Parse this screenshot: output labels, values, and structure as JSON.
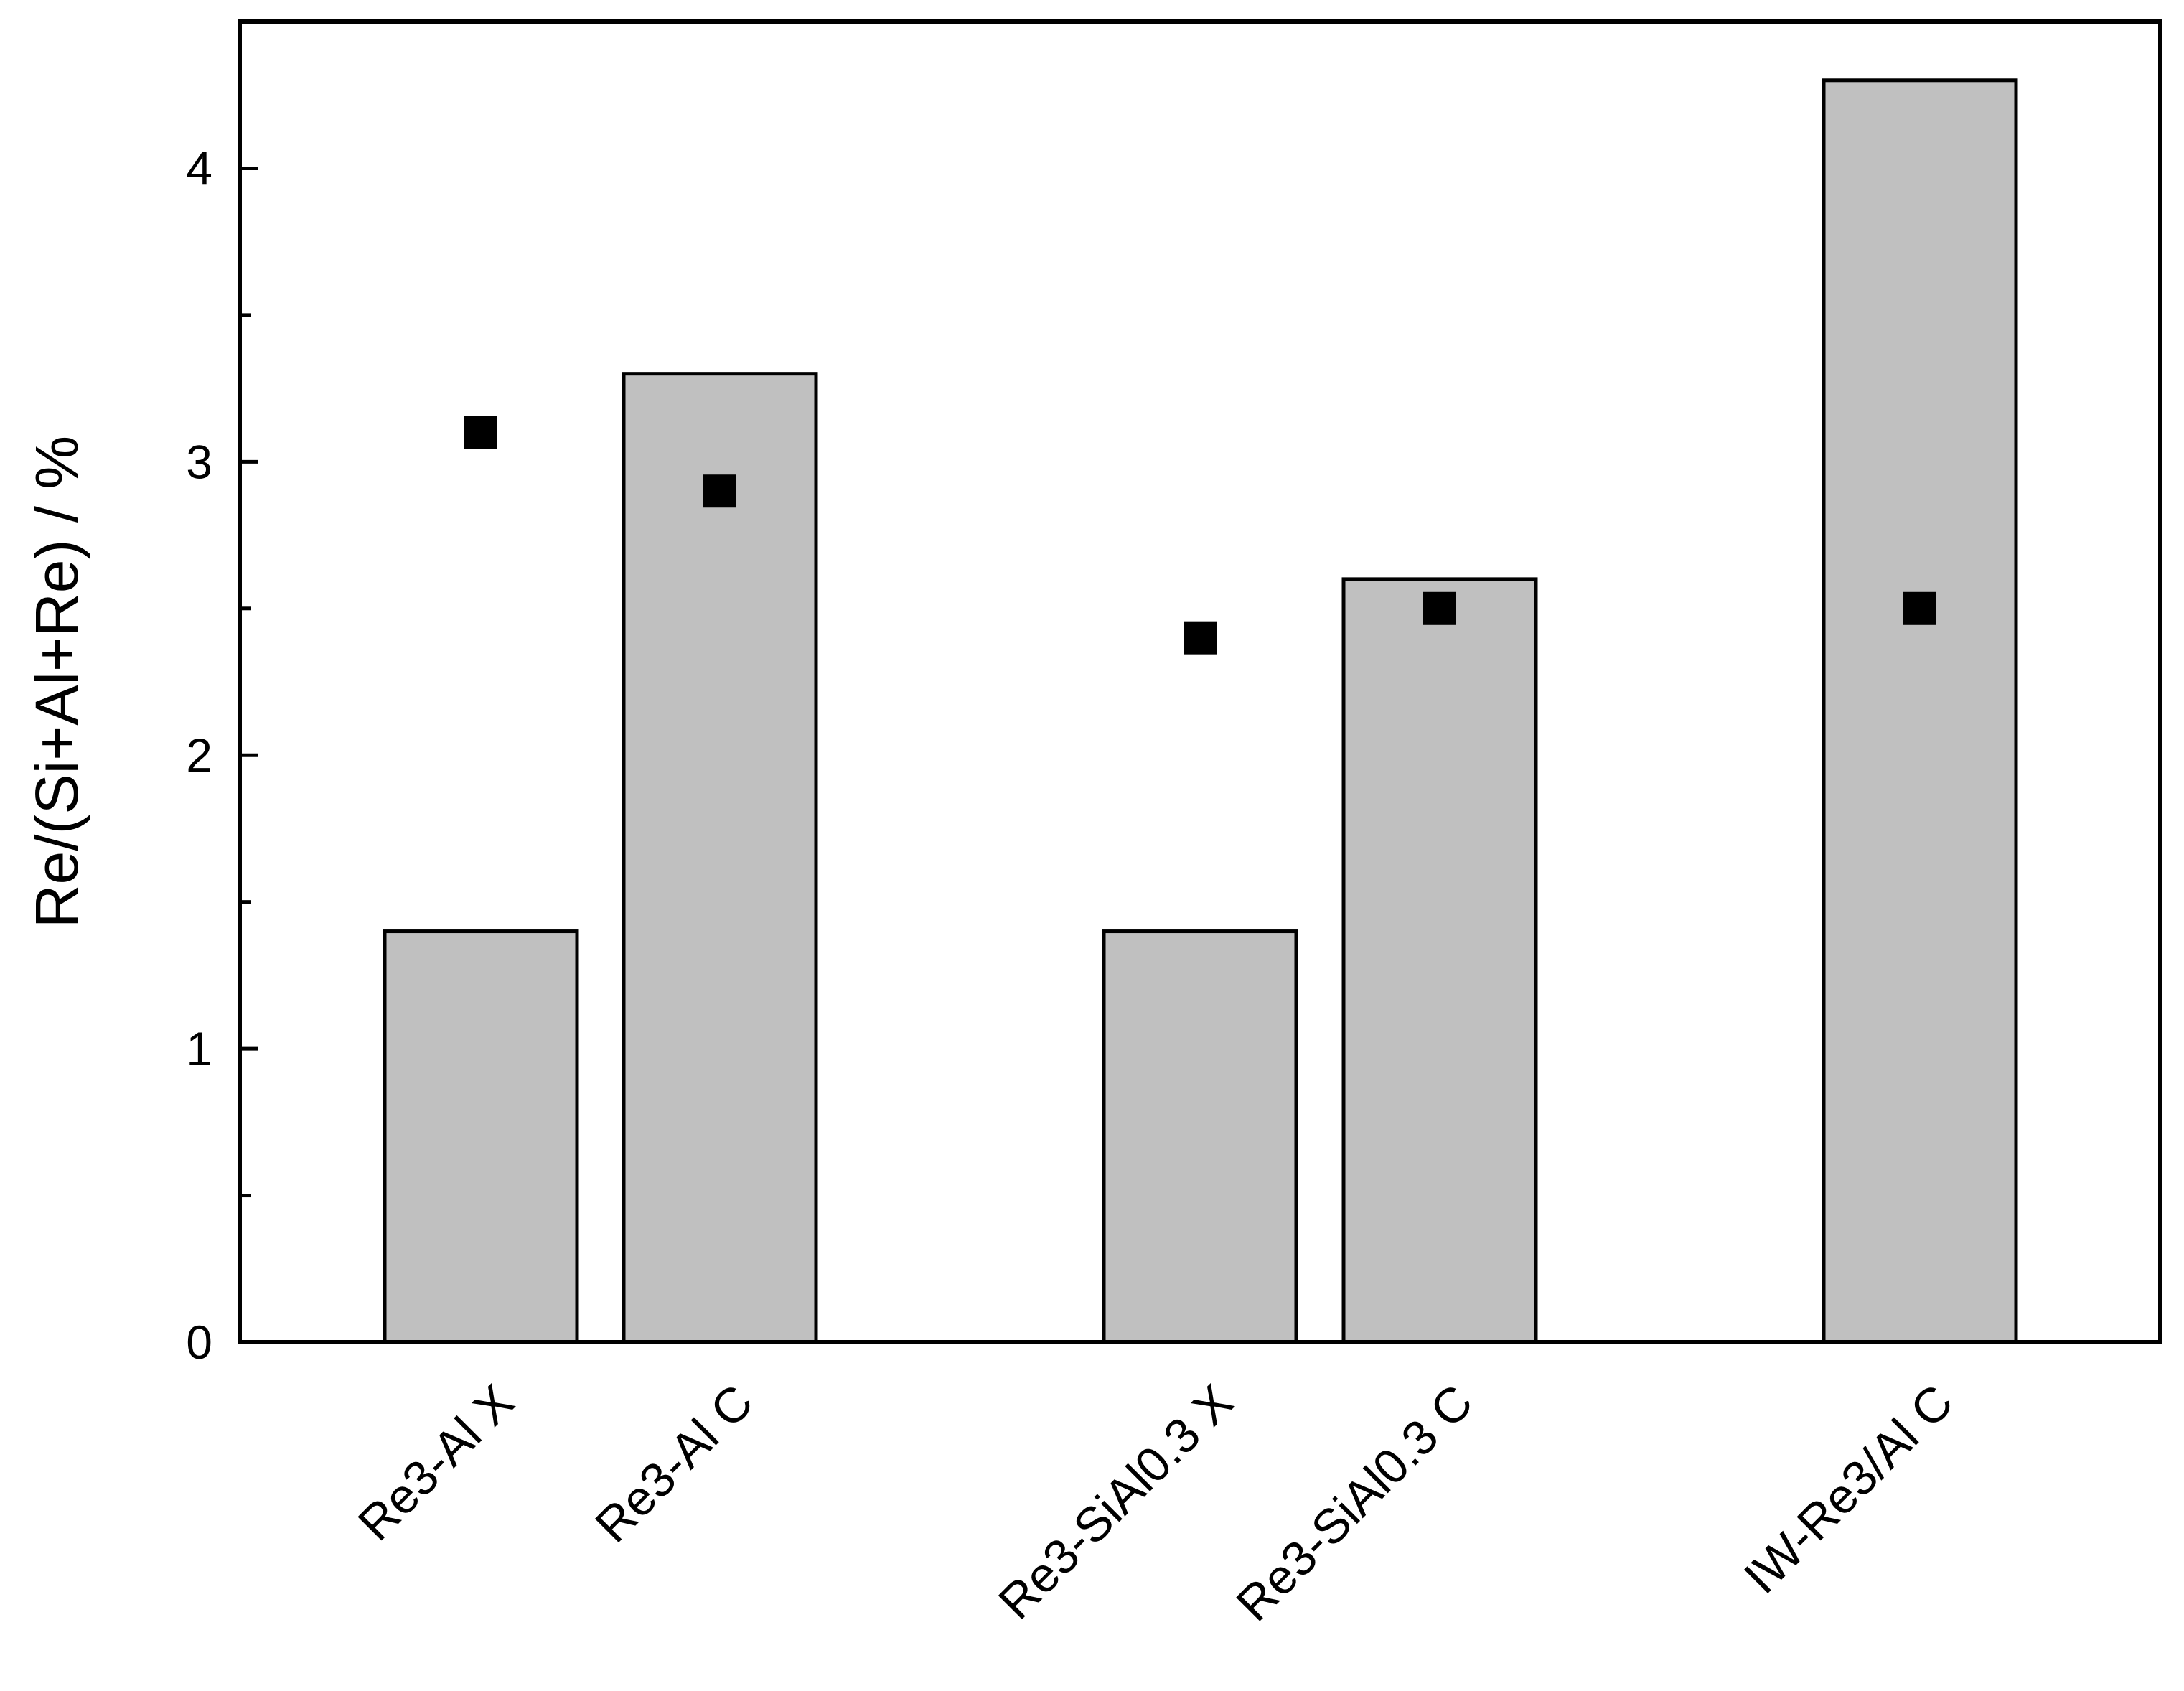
{
  "chart_data": {
    "type": "bar",
    "categories": [
      "Re3-Al X",
      "Re3-Al C",
      "Re3-SiAl0.3 X",
      "Re3-SiAl0.3 C",
      "IW-Re3/Al C"
    ],
    "series": [
      {
        "type": "bar",
        "values": [
          1.4,
          3.3,
          1.4,
          2.6,
          4.3
        ],
        "color": "#c0c0c0"
      },
      {
        "type": "scatter",
        "marker": "square",
        "values": [
          3.1,
          2.9,
          2.4,
          2.5,
          2.5
        ],
        "color": "#000000"
      }
    ],
    "title": "",
    "xlabel": "",
    "ylabel": "Re/(Si+Al+Re) / %",
    "ylim": [
      0,
      4.5
    ],
    "yticks": [
      "0",
      "1",
      "2",
      "3",
      "4"
    ],
    "grid": false,
    "legend": "none"
  }
}
